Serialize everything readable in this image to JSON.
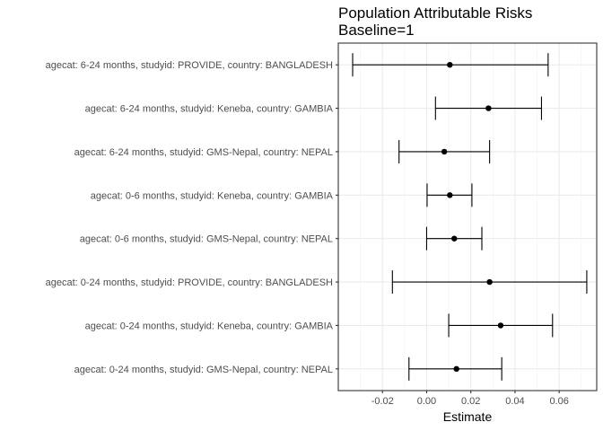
{
  "chart_data": {
    "type": "forest",
    "title": "Population Attributable Risks",
    "subtitle": "Baseline=1",
    "xlabel": "Estimate",
    "ylabel": "",
    "xlim": [
      -0.04,
      0.077
    ],
    "x_ticks": [
      -0.02,
      0.0,
      0.02,
      0.04,
      0.06
    ],
    "x_tick_labels": [
      "-0.02",
      "0.00",
      "0.02",
      "0.04",
      "0.06"
    ],
    "grid": true,
    "theme": "bw",
    "categories": [
      "agecat: 6-24 months, studyid: PROVIDE, country: BANGLADESH",
      "agecat: 6-24 months, studyid: Keneba, country: GAMBIA",
      "agecat: 6-24 months, studyid: GMS-Nepal, country: NEPAL",
      "agecat: 0-6 months, studyid: Keneba, country: GAMBIA",
      "agecat: 0-6 months, studyid: GMS-Nepal, country: NEPAL",
      "agecat: 0-24 months, studyid: PROVIDE, country: BANGLADESH",
      "agecat: 0-24 months, studyid: Keneba, country: GAMBIA",
      "agecat: 0-24 months, studyid: GMS-Nepal, country: NEPAL"
    ],
    "estimates": [
      0.0105,
      0.028,
      0.008,
      0.0105,
      0.0125,
      0.0285,
      0.0335,
      0.0135
    ],
    "lower": [
      -0.0335,
      0.004,
      -0.0125,
      0.0002,
      0.0,
      -0.0155,
      0.01,
      -0.008
    ],
    "upper": [
      0.055,
      0.052,
      0.0285,
      0.0205,
      0.025,
      0.0725,
      0.057,
      0.034
    ]
  }
}
